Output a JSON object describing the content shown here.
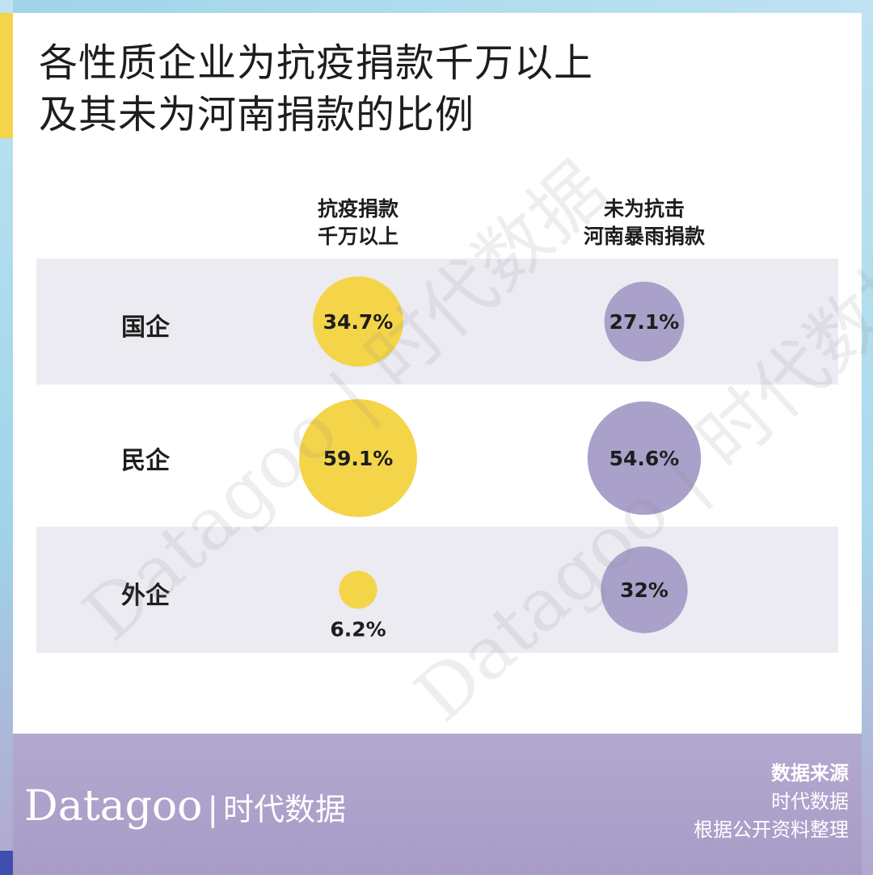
{
  "title": {
    "line1": "各性质企业为抗疫捐款千万以上",
    "line2": "及其未为河南捐款的比例"
  },
  "columns": [
    {
      "line1": "抗疫捐款",
      "line2": "千万以上"
    },
    {
      "line1": "未为抗击",
      "line2": "河南暴雨捐款"
    }
  ],
  "chart_data": {
    "type": "bubble",
    "categories": [
      "国企",
      "民企",
      "外企"
    ],
    "series": [
      {
        "name": "抗疫捐款千万以上",
        "values": [
          34.7,
          59.1,
          6.2
        ],
        "labels": [
          "34.7%",
          "59.1%",
          "6.2%"
        ],
        "color": "#f4d54a"
      },
      {
        "name": "未为抗击河南暴雨捐款",
        "values": [
          27.1,
          54.6,
          32
        ],
        "labels": [
          "27.1%",
          "54.6%",
          "32%"
        ],
        "color": "#aaa1ca"
      }
    ]
  },
  "footer": {
    "logo_en": "Datagoo",
    "logo_sep": "|",
    "logo_cn": "时代数据",
    "source_heading": "数据来源",
    "source_line1": "时代数据",
    "source_line2": "根据公开资料整理"
  },
  "watermark": "Datagoo | 时代数据",
  "colors": {
    "yellow": "#f4d54a",
    "purple": "#aaa1ca",
    "band": "#ecebf2",
    "footer": "#ab9fca"
  }
}
